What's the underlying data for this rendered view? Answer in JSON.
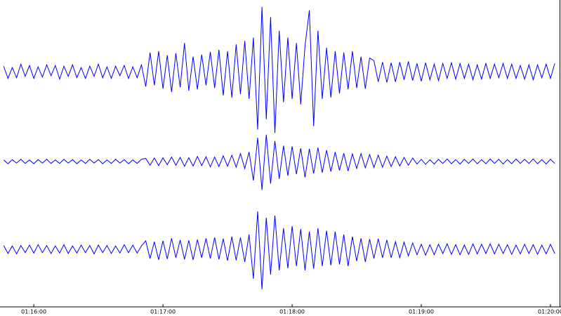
{
  "chart_data": {
    "type": "line",
    "x": [
      4546,
      4548,
      4550,
      4552,
      4554,
      4556,
      4558,
      4560,
      4562,
      4564,
      4566,
      4568,
      4570,
      4572,
      4574,
      4576,
      4578,
      4580,
      4582,
      4584,
      4586,
      4588,
      4590,
      4592,
      4594,
      4596,
      4598,
      4600,
      4602,
      4604,
      4606,
      4608,
      4610,
      4612,
      4614,
      4616,
      4618,
      4620,
      4622,
      4624,
      4626,
      4628,
      4630,
      4632,
      4634,
      4636,
      4638,
      4640,
      4642,
      4644,
      4646,
      4648,
      4650,
      4652,
      4654,
      4656,
      4658,
      4660,
      4662,
      4664,
      4666,
      4668,
      4670,
      4672,
      4674,
      4676,
      4678,
      4680,
      4682,
      4684,
      4686,
      4688,
      4690,
      4692,
      4694,
      4696,
      4698,
      4700,
      4702,
      4704,
      4706,
      4708,
      4710,
      4712,
      4714,
      4716,
      4718,
      4720,
      4722,
      4724,
      4726,
      4728,
      4730,
      4732,
      4734,
      4736,
      4738,
      4740,
      4742,
      4744,
      4746,
      4748,
      4750,
      4752,
      4754,
      4756,
      4758,
      4760,
      4762,
      4764,
      4766,
      4768,
      4770,
      4772,
      4774,
      4776,
      4778,
      4780,
      4782,
      4784,
      4786,
      4788,
      4790,
      4792,
      4794,
      4796,
      4798,
      4800,
      4802
    ],
    "series": [
      {
        "color": "#0000ff",
        "values": [
          0.08,
          -0.1,
          0.06,
          -0.09,
          0.11,
          -0.07,
          0.09,
          -0.1,
          0.07,
          -0.08,
          0.1,
          -0.06,
          0.09,
          -0.11,
          0.08,
          -0.07,
          0.1,
          -0.09,
          0.06,
          -0.1,
          0.08,
          -0.07,
          0.11,
          -0.09,
          0.07,
          -0.1,
          0.08,
          -0.06,
          0.09,
          -0.1,
          0.07,
          -0.09,
          0.1,
          -0.22,
          0.28,
          -0.2,
          0.3,
          -0.25,
          0.24,
          -0.3,
          0.27,
          -0.23,
          0.42,
          -0.28,
          0.22,
          -0.26,
          0.25,
          -0.2,
          0.29,
          -0.24,
          0.32,
          -0.35,
          0.3,
          -0.38,
          0.4,
          -0.33,
          0.45,
          -0.4,
          0.5,
          -0.85,
          0.95,
          -0.7,
          0.8,
          -0.9,
          0.6,
          -0.45,
          0.5,
          -0.4,
          0.42,
          -0.48,
          0.38,
          0.9,
          -0.8,
          0.6,
          -0.4,
          0.35,
          -0.38,
          0.3,
          -0.32,
          0.28,
          -0.26,
          0.3,
          -0.24,
          0.22,
          -0.25,
          0.2,
          0.16,
          -0.15,
          0.14,
          -0.16,
          0.13,
          -0.15,
          0.14,
          -0.12,
          0.15,
          -0.13,
          0.12,
          -0.14,
          0.13,
          -0.12,
          0.11,
          -0.13,
          0.12,
          -0.1,
          0.13,
          -0.11,
          0.12,
          -0.1,
          0.11,
          -0.12,
          0.1,
          -0.11,
          0.12,
          -0.1,
          0.11,
          -0.09,
          0.12,
          -0.1,
          0.11,
          -0.1,
          0.09,
          -0.11,
          0.1,
          -0.12,
          0.1,
          -0.09,
          0.11,
          -0.1,
          0.12
        ]
      },
      {
        "color": "#0000ff",
        "values": [
          0.05,
          -0.07,
          0.06,
          -0.05,
          0.07,
          -0.06,
          0.05,
          -0.07,
          0.06,
          -0.05,
          0.07,
          -0.06,
          0.05,
          -0.06,
          0.07,
          -0.05,
          0.06,
          -0.07,
          0.05,
          -0.06,
          0.07,
          -0.05,
          0.06,
          -0.07,
          0.05,
          -0.06,
          0.07,
          -0.05,
          0.06,
          -0.07,
          0.05,
          -0.06,
          0.07,
          0.1,
          -0.12,
          0.11,
          -0.13,
          0.12,
          -0.1,
          0.14,
          -0.12,
          0.13,
          -0.15,
          0.12,
          -0.14,
          0.16,
          -0.13,
          0.15,
          -0.17,
          0.14,
          -0.16,
          0.18,
          -0.15,
          0.2,
          -0.18,
          0.25,
          -0.22,
          0.3,
          -0.6,
          0.75,
          -0.9,
          0.85,
          -0.7,
          0.65,
          -0.55,
          0.5,
          -0.45,
          0.48,
          -0.4,
          0.42,
          -0.5,
          0.4,
          -0.38,
          0.44,
          -0.35,
          0.36,
          -0.32,
          0.3,
          -0.28,
          0.26,
          -0.3,
          0.24,
          -0.22,
          0.25,
          -0.2,
          0.22,
          -0.19,
          0.2,
          -0.18,
          0.17,
          -0.16,
          0.15,
          -0.14,
          0.13,
          -0.12,
          0.11,
          -0.08,
          0.07,
          -0.09,
          0.06,
          -0.08,
          0.07,
          -0.06,
          0.08,
          -0.07,
          0.06,
          -0.08,
          0.07,
          -0.06,
          0.08,
          -0.07,
          0.06,
          -0.07,
          0.08,
          -0.06,
          0.07,
          -0.08,
          0.06,
          -0.07,
          0.08,
          -0.06,
          0.07,
          -0.06,
          0.08,
          -0.07,
          0.06,
          -0.08,
          0.07,
          -0.06
        ]
      },
      {
        "color": "#0000ff",
        "values": [
          0.09,
          -0.1,
          0.08,
          -0.11,
          0.09,
          -0.08,
          0.1,
          -0.09,
          0.11,
          -0.08,
          0.09,
          -0.1,
          0.08,
          -0.09,
          0.11,
          -0.1,
          0.08,
          -0.09,
          0.1,
          -0.08,
          0.09,
          -0.11,
          0.1,
          -0.08,
          0.09,
          -0.1,
          0.08,
          -0.09,
          0.11,
          -0.08,
          0.1,
          -0.09,
          0.08,
          0.2,
          -0.22,
          0.18,
          -0.25,
          0.2,
          -0.23,
          0.26,
          -0.2,
          0.22,
          -0.24,
          0.21,
          -0.25,
          0.23,
          -0.2,
          0.26,
          -0.22,
          0.28,
          -0.24,
          0.25,
          -0.27,
          0.3,
          -0.26,
          0.28,
          -0.3,
          0.35,
          -0.7,
          0.9,
          -0.95,
          0.75,
          -0.6,
          0.8,
          -0.5,
          0.5,
          -0.45,
          0.55,
          -0.4,
          0.48,
          -0.5,
          0.42,
          -0.46,
          0.5,
          -0.4,
          0.44,
          -0.38,
          0.42,
          -0.36,
          0.35,
          -0.4,
          0.3,
          -0.28,
          0.26,
          -0.3,
          0.24,
          -0.22,
          0.25,
          -0.2,
          0.22,
          -0.2,
          0.18,
          -0.2,
          0.17,
          -0.16,
          0.15,
          -0.13,
          0.12,
          -0.14,
          0.11,
          -0.13,
          0.12,
          -0.1,
          0.13,
          -0.12,
          0.11,
          -0.13,
          0.1,
          -0.12,
          0.13,
          -0.11,
          0.12,
          -0.1,
          0.13,
          -0.11,
          0.12,
          -0.1,
          0.11,
          -0.12,
          0.1,
          -0.11,
          0.12,
          -0.1,
          0.11,
          -0.12,
          0.1,
          -0.11,
          0.12,
          -0.1
        ]
      }
    ],
    "xlim": [
      4544.3,
      4804.9
    ],
    "ylim": [
      -1,
      1
    ],
    "xticks": [
      {
        "value": 4560,
        "label": "01:16:00"
      },
      {
        "value": 4620,
        "label": "01:17:00"
      },
      {
        "value": 4680,
        "label": "01:18:00"
      },
      {
        "value": 4740,
        "label": "01:19:00"
      },
      {
        "value": 4800,
        "label": "01:20:00"
      }
    ]
  }
}
